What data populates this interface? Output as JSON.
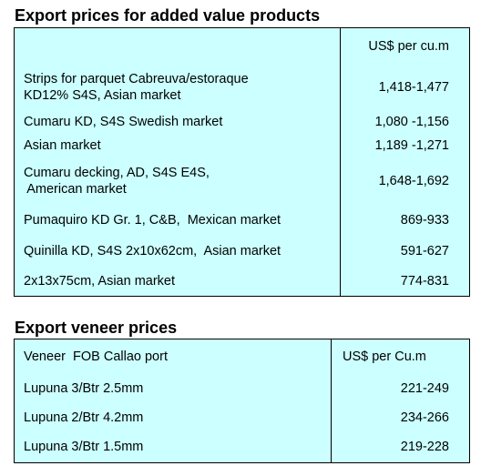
{
  "added_value": {
    "title": "Export prices for added value products",
    "unit_header": "US$ per cu.m",
    "rows": [
      {
        "product_line1": "Strips for parquet Cabreuva/estoraque",
        "product_line2": "KD12% S4S, Asian market",
        "price": "1,418-1,477"
      },
      {
        "product_line1": "Cumaru KD, S4S Swedish market",
        "product_line2": "",
        "price": "1,080 -1,156"
      },
      {
        "product_line1": "Asian market",
        "product_line2": "",
        "price": "1,189 -1,271"
      },
      {
        "product_line1": "Cumaru decking, AD, S4S E4S,",
        "product_line2": " American market",
        "price": "1,648-1,692"
      },
      {
        "product_line1": "Pumaquiro KD Gr. 1, C&B,  Mexican market",
        "product_line2": "",
        "price": "869-933"
      },
      {
        "product_line1": "Quinilla KD, S4S 2x10x62cm,  Asian market",
        "product_line2": "",
        "price": "591-627"
      },
      {
        "product_line1": "2x13x75cm, Asian market",
        "product_line2": "",
        "price": "774-831"
      }
    ]
  },
  "veneer": {
    "title": "Export veneer prices",
    "col1_header": "Veneer  FOB Callao port",
    "col2_header": "US$ per Cu.m",
    "rows": [
      {
        "product": "Lupuna 3/Btr 2.5mm",
        "price": "221-249"
      },
      {
        "product": "Lupuna 2/Btr 4.2mm",
        "price": "234-266"
      },
      {
        "product": "Lupuna 3/Btr 1.5mm",
        "price": "219-228"
      }
    ]
  }
}
